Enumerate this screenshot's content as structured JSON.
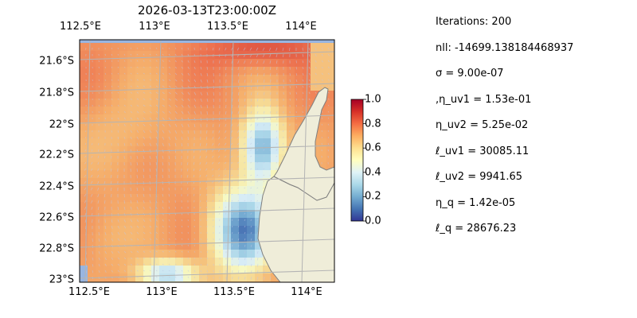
{
  "map": {
    "title": "2026-03-13T23:00:00Z",
    "top_ticks": [
      "112.5°E",
      "113°E",
      "113.5°E",
      "114°E"
    ],
    "bottom_ticks": [
      "112.5°E",
      "113°E",
      "113.5°E",
      "114°E"
    ],
    "left_ticks": [
      "21.6°S",
      "21.8°S",
      "22°S",
      "22.2°S",
      "22.4°S",
      "22.6°S",
      "22.8°S",
      "23°S"
    ],
    "colors": {
      "ocean": "#98b5e0",
      "land": "#efedd9",
      "coast": "#7f7f7f",
      "grid": "#b4b4b4"
    }
  },
  "colorbar": {
    "ticks": [
      "0.0",
      "0.2",
      "0.4",
      "0.6",
      "0.8",
      "1.0"
    ],
    "colormap": "RdYlBu_r"
  },
  "stats": [
    "Iterations: 200",
    "nll: -14699.138184468937",
    "σ = 9.00e-07",
    ",η_uv1 = 1.53e-01",
    "η_uv2 = 5.25e-02",
    "ℓ_uv1 = 30085.11",
    "ℓ_uv2 = 9941.65",
    "η_q = 1.42e-05",
    "ℓ_q = 28676.23"
  ]
}
